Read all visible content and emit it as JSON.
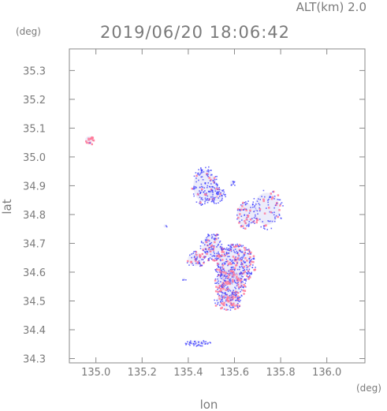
{
  "header": {
    "altitude_label": "ALT(km)  2.0",
    "timestamp": "2019/06/20 18:06:42",
    "y_unit": "(deg)",
    "x_unit": "(deg)"
  },
  "colors": {
    "axis": "#8a8a8a",
    "text": "#7a7a7a",
    "echo_blue": "#3a3aff",
    "echo_pink": "#ff7a9a",
    "echo_light": "#dcdcf6"
  },
  "chart_data": {
    "type": "scatter",
    "xlabel": "lon",
    "ylabel": "lat",
    "xlim": [
      134.885,
      136.165
    ],
    "ylim": [
      34.285,
      35.375
    ],
    "x_ticks": [
      135.0,
      135.2,
      135.4,
      135.6,
      135.8,
      136.0
    ],
    "x_tick_labels": [
      "135.0",
      "135.2",
      "135.4",
      "135.6",
      "135.8",
      "136.0"
    ],
    "y_ticks": [
      34.3,
      34.4,
      34.5,
      34.6,
      34.7,
      34.8,
      34.9,
      35.0,
      35.1,
      35.2,
      35.3
    ],
    "y_tick_labels": [
      "34.3",
      "34.4",
      "34.5",
      "34.6",
      "34.7",
      "34.8",
      "34.9",
      "35.0",
      "35.1",
      "35.2",
      "35.3"
    ],
    "grid": false,
    "echo_clusters": [
      {
        "lon": 134.97,
        "lat": 35.06,
        "lon_span": 0.02,
        "lat_span": 0.015,
        "points": 18,
        "pink_ratio": 0.8
      },
      {
        "lon": 135.47,
        "lat": 34.9,
        "lon_span": 0.06,
        "lat_span": 0.07,
        "points": 140,
        "pink_ratio": 0.1
      },
      {
        "lon": 135.52,
        "lat": 34.87,
        "lon_span": 0.04,
        "lat_span": 0.03,
        "points": 60,
        "pink_ratio": 0.15
      },
      {
        "lon": 135.59,
        "lat": 34.91,
        "lon_span": 0.012,
        "lat_span": 0.01,
        "points": 8,
        "pink_ratio": 0.0
      },
      {
        "lon": 135.65,
        "lat": 34.8,
        "lon_span": 0.05,
        "lat_span": 0.05,
        "points": 70,
        "pink_ratio": 0.2
      },
      {
        "lon": 135.74,
        "lat": 34.82,
        "lon_span": 0.07,
        "lat_span": 0.07,
        "points": 90,
        "pink_ratio": 0.15
      },
      {
        "lon": 135.3,
        "lat": 34.76,
        "lon_span": 0.006,
        "lat_span": 0.004,
        "points": 2,
        "pink_ratio": 0.0
      },
      {
        "lon": 135.5,
        "lat": 34.69,
        "lon_span": 0.05,
        "lat_span": 0.05,
        "points": 120,
        "pink_ratio": 0.2
      },
      {
        "lon": 135.43,
        "lat": 34.645,
        "lon_span": 0.04,
        "lat_span": 0.03,
        "points": 50,
        "pink_ratio": 0.25
      },
      {
        "lon": 135.6,
        "lat": 34.63,
        "lon_span": 0.09,
        "lat_span": 0.07,
        "points": 320,
        "pink_ratio": 0.25
      },
      {
        "lon": 135.58,
        "lat": 34.56,
        "lon_span": 0.07,
        "lat_span": 0.06,
        "points": 220,
        "pink_ratio": 0.3
      },
      {
        "lon": 135.57,
        "lat": 34.5,
        "lon_span": 0.06,
        "lat_span": 0.03,
        "points": 90,
        "pink_ratio": 0.35
      },
      {
        "lon": 135.38,
        "lat": 34.575,
        "lon_span": 0.008,
        "lat_span": 0.006,
        "points": 3,
        "pink_ratio": 0.0
      },
      {
        "lon": 135.44,
        "lat": 34.355,
        "lon_span": 0.06,
        "lat_span": 0.01,
        "points": 40,
        "pink_ratio": 0.0
      }
    ]
  }
}
